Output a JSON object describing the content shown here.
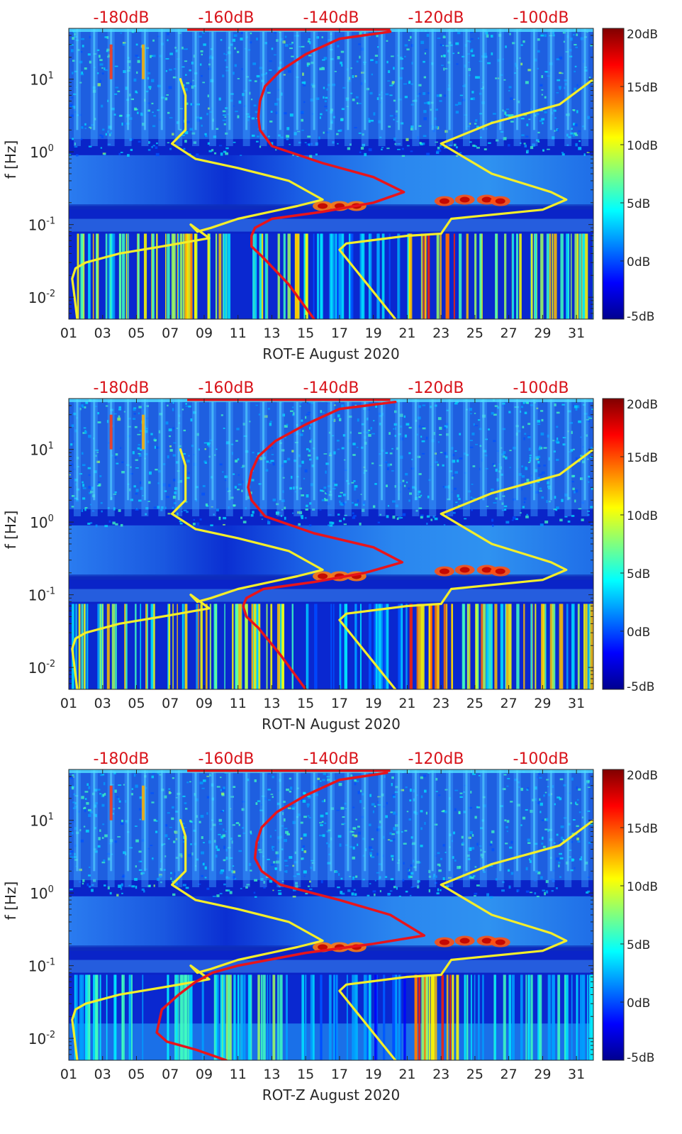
{
  "figure": {
    "colors": {
      "psd_curve": "#e8141b",
      "noise_model": "#f4ee2a",
      "top_axis_text": "#d8141b",
      "axis_text": "#262626"
    }
  },
  "chart_data": [
    {
      "type": "heatmap",
      "panel": "ROT-E",
      "xlabel": "ROT-E August 2020",
      "ylabel": "f [Hz]",
      "x_tick_labels": [
        "01",
        "03",
        "05",
        "07",
        "09",
        "11",
        "13",
        "15",
        "17",
        "19",
        "21",
        "23",
        "25",
        "27",
        "29",
        "31"
      ],
      "x_range_days": [
        1,
        32
      ],
      "y_scale": "log",
      "y_range_hz": [
        0.005,
        50
      ],
      "y_tick_labels": [
        {
          "base": "10",
          "exp": "1",
          "value": 10
        },
        {
          "base": "10",
          "exp": "0",
          "value": 1
        },
        {
          "base": "10",
          "exp": "-1",
          "value": 0.1
        },
        {
          "base": "10",
          "exp": "-2",
          "value": 0.01
        }
      ],
      "top_axis_labels": [
        "-180dB",
        "-160dB",
        "-140dB",
        "-120dB",
        "-100dB"
      ],
      "top_axis_range_db": [
        -190,
        -90
      ],
      "colorbar": {
        "range_db": [
          -5,
          20
        ],
        "tick_labels": [
          "20dB",
          "15dB",
          "10dB",
          "5dB",
          "0dB",
          "-5dB"
        ]
      },
      "series": [
        {
          "name": "noise_model_low",
          "points": [
            [
              7.6,
              10
            ],
            [
              7.9,
              6
            ],
            [
              7.9,
              3
            ],
            [
              7.9,
              2
            ],
            [
              7.1,
              1.3
            ],
            [
              8.5,
              0.8
            ],
            [
              11,
              0.6
            ],
            [
              14,
              0.4
            ],
            [
              16,
              0.22
            ],
            [
              14.5,
              0.18
            ],
            [
              11,
              0.12
            ],
            [
              9.4,
              0.09
            ],
            [
              8.6,
              0.08
            ],
            [
              8.2,
              0.1
            ],
            [
              9.3,
              0.065
            ],
            [
              6.5,
              0.05
            ],
            [
              4,
              0.04
            ],
            [
              2,
              0.03
            ],
            [
              1.4,
              0.025
            ],
            [
              1.2,
              0.018
            ],
            [
              1.3,
              0.012
            ],
            [
              1.5,
              0.005
            ]
          ]
        },
        {
          "name": "noise_model_high",
          "points": [
            [
              20.3,
              0.005
            ],
            [
              17,
              0.045
            ],
            [
              17.4,
              0.055
            ],
            [
              21,
              0.07
            ],
            [
              23,
              0.075
            ],
            [
              23.6,
              0.12
            ],
            [
              29,
              0.16
            ],
            [
              30.4,
              0.22
            ],
            [
              29.5,
              0.28
            ],
            [
              26,
              0.5
            ],
            [
              23,
              1.3
            ],
            [
              26,
              2.5
            ],
            [
              30,
              4.5
            ],
            [
              32,
              10
            ]
          ]
        },
        {
          "name": "median_psd",
          "points": [
            [
              20,
              45
            ],
            [
              17,
              36
            ],
            [
              15,
              22
            ],
            [
              13.5,
              13
            ],
            [
              12.6,
              8
            ],
            [
              12.3,
              5
            ],
            [
              12.2,
              3
            ],
            [
              12.3,
              2
            ],
            [
              13,
              1.2
            ],
            [
              16,
              0.7
            ],
            [
              19,
              0.45
            ],
            [
              20.8,
              0.28
            ],
            [
              19,
              0.2
            ],
            [
              16,
              0.15
            ],
            [
              13,
              0.12
            ],
            [
              12,
              0.09
            ],
            [
              11.8,
              0.07
            ],
            [
              11.8,
              0.05
            ],
            [
              12.5,
              0.035
            ],
            [
              14,
              0.015
            ],
            [
              15.5,
              0.005
            ]
          ]
        }
      ]
    },
    {
      "type": "heatmap",
      "panel": "ROT-N",
      "xlabel": "ROT-N August 2020",
      "ylabel": "f [Hz]",
      "x_tick_labels": [
        "01",
        "03",
        "05",
        "07",
        "09",
        "11",
        "13",
        "15",
        "17",
        "19",
        "21",
        "23",
        "25",
        "27",
        "29",
        "31"
      ],
      "x_range_days": [
        1,
        32
      ],
      "y_scale": "log",
      "y_range_hz": [
        0.005,
        50
      ],
      "y_tick_labels": [
        {
          "base": "10",
          "exp": "1",
          "value": 10
        },
        {
          "base": "10",
          "exp": "0",
          "value": 1
        },
        {
          "base": "10",
          "exp": "-1",
          "value": 0.1
        },
        {
          "base": "10",
          "exp": "-2",
          "value": 0.01
        }
      ],
      "top_axis_labels": [
        "-180dB",
        "-160dB",
        "-140dB",
        "-120dB",
        "-100dB"
      ],
      "top_axis_range_db": [
        -190,
        -90
      ],
      "colorbar": {
        "range_db": [
          -5,
          20
        ],
        "tick_labels": [
          "20dB",
          "15dB",
          "10dB",
          "5dB",
          "0dB",
          "-5dB"
        ]
      },
      "series": [
        {
          "name": "noise_model_low",
          "points": [
            [
              7.6,
              10
            ],
            [
              7.9,
              6
            ],
            [
              7.9,
              3
            ],
            [
              7.9,
              2
            ],
            [
              7.1,
              1.3
            ],
            [
              8.5,
              0.8
            ],
            [
              11,
              0.6
            ],
            [
              14,
              0.4
            ],
            [
              16,
              0.22
            ],
            [
              14.5,
              0.18
            ],
            [
              11,
              0.12
            ],
            [
              9.4,
              0.09
            ],
            [
              8.6,
              0.08
            ],
            [
              8.2,
              0.1
            ],
            [
              9.3,
              0.065
            ],
            [
              6.5,
              0.05
            ],
            [
              4,
              0.04
            ],
            [
              2,
              0.03
            ],
            [
              1.4,
              0.025
            ],
            [
              1.2,
              0.018
            ],
            [
              1.3,
              0.012
            ],
            [
              1.5,
              0.005
            ]
          ]
        },
        {
          "name": "noise_model_high",
          "points": [
            [
              20.3,
              0.005
            ],
            [
              17,
              0.045
            ],
            [
              17.4,
              0.055
            ],
            [
              21,
              0.07
            ],
            [
              23,
              0.075
            ],
            [
              23.6,
              0.12
            ],
            [
              29,
              0.16
            ],
            [
              30.4,
              0.22
            ],
            [
              29.5,
              0.28
            ],
            [
              26,
              0.5
            ],
            [
              23,
              1.3
            ],
            [
              26,
              2.5
            ],
            [
              30,
              4.5
            ],
            [
              32,
              10
            ]
          ]
        },
        {
          "name": "median_psd",
          "points": [
            [
              20.3,
              45
            ],
            [
              17,
              36
            ],
            [
              15,
              22
            ],
            [
              13.2,
              13
            ],
            [
              12.2,
              8
            ],
            [
              11.8,
              5
            ],
            [
              11.6,
              3
            ],
            [
              11.8,
              2
            ],
            [
              12.6,
              1.2
            ],
            [
              15.5,
              0.7
            ],
            [
              19,
              0.45
            ],
            [
              20.7,
              0.28
            ],
            [
              18.5,
              0.2
            ],
            [
              15.5,
              0.15
            ],
            [
              12.5,
              0.12
            ],
            [
              11.5,
              0.09
            ],
            [
              11.3,
              0.07
            ],
            [
              11.5,
              0.05
            ],
            [
              12.2,
              0.035
            ],
            [
              13.5,
              0.015
            ],
            [
              15,
              0.005
            ]
          ]
        }
      ]
    },
    {
      "type": "heatmap",
      "panel": "ROT-Z",
      "xlabel": "ROT-Z August 2020",
      "ylabel": "f [Hz]",
      "x_tick_labels": [
        "01",
        "03",
        "05",
        "07",
        "09",
        "11",
        "13",
        "15",
        "17",
        "19",
        "21",
        "23",
        "25",
        "27",
        "29",
        "31"
      ],
      "x_range_days": [
        1,
        32
      ],
      "y_scale": "log",
      "y_range_hz": [
        0.005,
        50
      ],
      "y_tick_labels": [
        {
          "base": "10",
          "exp": "1",
          "value": 10
        },
        {
          "base": "10",
          "exp": "0",
          "value": 1
        },
        {
          "base": "10",
          "exp": "-1",
          "value": 0.1
        },
        {
          "base": "10",
          "exp": "-2",
          "value": 0.01
        }
      ],
      "top_axis_labels": [
        "-180dB",
        "-160dB",
        "-140dB",
        "-120dB",
        "-100dB"
      ],
      "top_axis_range_db": [
        -190,
        -90
      ],
      "colorbar": {
        "range_db": [
          -5,
          20
        ],
        "tick_labels": [
          "20dB",
          "15dB",
          "10dB",
          "5dB",
          "0dB",
          "-5dB"
        ]
      },
      "series": [
        {
          "name": "noise_model_low",
          "points": [
            [
              7.6,
              10
            ],
            [
              7.9,
              6
            ],
            [
              7.9,
              3
            ],
            [
              7.9,
              2
            ],
            [
              7.1,
              1.3
            ],
            [
              8.5,
              0.8
            ],
            [
              11,
              0.6
            ],
            [
              14,
              0.4
            ],
            [
              16,
              0.22
            ],
            [
              14.5,
              0.18
            ],
            [
              11,
              0.12
            ],
            [
              9.4,
              0.09
            ],
            [
              8.6,
              0.08
            ],
            [
              8.2,
              0.1
            ],
            [
              9.3,
              0.065
            ],
            [
              6.5,
              0.05
            ],
            [
              4,
              0.04
            ],
            [
              2,
              0.03
            ],
            [
              1.4,
              0.025
            ],
            [
              1.2,
              0.018
            ],
            [
              1.3,
              0.012
            ],
            [
              1.5,
              0.005
            ]
          ]
        },
        {
          "name": "noise_model_high",
          "points": [
            [
              20.3,
              0.005
            ],
            [
              17,
              0.045
            ],
            [
              17.4,
              0.055
            ],
            [
              21,
              0.07
            ],
            [
              23,
              0.075
            ],
            [
              23.6,
              0.12
            ],
            [
              29,
              0.16
            ],
            [
              30.4,
              0.22
            ],
            [
              29.5,
              0.28
            ],
            [
              26,
              0.5
            ],
            [
              23,
              1.3
            ],
            [
              26,
              2.5
            ],
            [
              30,
              4.5
            ],
            [
              32,
              10
            ]
          ]
        },
        {
          "name": "median_psd",
          "points": [
            [
              19.8,
              45
            ],
            [
              17,
              36
            ],
            [
              15,
              22
            ],
            [
              13.3,
              13
            ],
            [
              12.4,
              8
            ],
            [
              12.1,
              5
            ],
            [
              12,
              3
            ],
            [
              12.4,
              2
            ],
            [
              13.5,
              1.3
            ],
            [
              17,
              0.8
            ],
            [
              20,
              0.5
            ],
            [
              22,
              0.26
            ],
            [
              19,
              0.2
            ],
            [
              15,
              0.15
            ],
            [
              11,
              0.1
            ],
            [
              9.5,
              0.08
            ],
            [
              8.5,
              0.06
            ],
            [
              7.5,
              0.04
            ],
            [
              6.5,
              0.025
            ],
            [
              6.2,
              0.012
            ],
            [
              6.8,
              0.009
            ],
            [
              8.5,
              0.007
            ],
            [
              10.3,
              0.005
            ]
          ]
        }
      ]
    }
  ]
}
